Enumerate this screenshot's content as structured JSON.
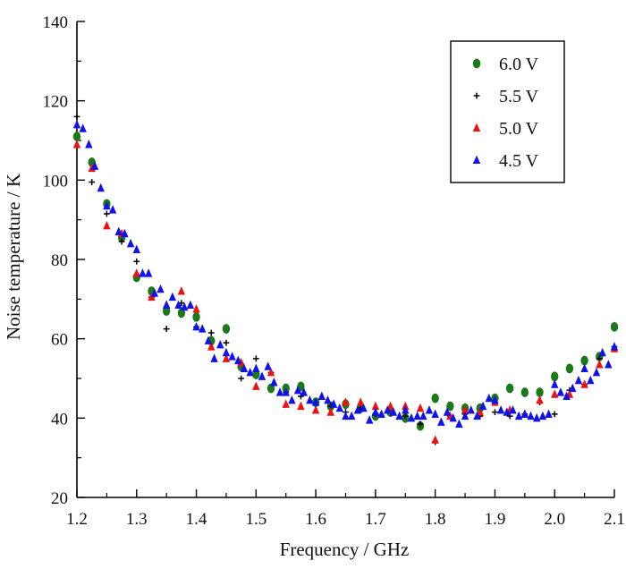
{
  "chart_data": {
    "type": "scatter",
    "title": "",
    "xlabel": "Frequency / GHz",
    "ylabel": "Noise temperature / K",
    "xlim": [
      1.2,
      2.1
    ],
    "ylim": [
      20,
      140
    ],
    "xticks": [
      1.2,
      1.3,
      1.4,
      1.5,
      1.6,
      1.7,
      1.8,
      1.9,
      2.0,
      2.1
    ],
    "xtick_labels": [
      "1.2",
      "1.3",
      "1.4",
      "1.5",
      "1.6",
      "1.7",
      "1.8",
      "1.9",
      "2.0",
      "2.1"
    ],
    "yticks": [
      20,
      40,
      60,
      80,
      100,
      120,
      140
    ],
    "ytick_labels": [
      "20",
      "40",
      "60",
      "80",
      "100",
      "120",
      "140"
    ],
    "grid": false,
    "legend_position": "top-right",
    "series": [
      {
        "name": "6.0 V",
        "marker": "circle",
        "color": "#1a7a1a",
        "x": [
          1.2,
          1.225,
          1.25,
          1.275,
          1.3,
          1.325,
          1.35,
          1.375,
          1.4,
          1.425,
          1.45,
          1.475,
          1.5,
          1.525,
          1.55,
          1.575,
          1.6,
          1.625,
          1.65,
          1.675,
          1.7,
          1.725,
          1.75,
          1.775,
          1.8,
          1.825,
          1.85,
          1.875,
          1.9,
          1.925,
          1.95,
          1.975,
          2.0,
          2.025,
          2.05,
          2.075,
          2.1
        ],
        "y": [
          111,
          104.5,
          94,
          85.5,
          75.5,
          72,
          67,
          66.5,
          65.5,
          59.5,
          62.5,
          53,
          51,
          47.5,
          47.5,
          48,
          44,
          43,
          43.5,
          42.5,
          40.5,
          41.5,
          40,
          38,
          45,
          43,
          42.5,
          42.5,
          45,
          47.5,
          46.5,
          46.5,
          50.5,
          52.5,
          54.5,
          55.5,
          63
        ]
      },
      {
        "name": "5.5 V",
        "marker": "plus",
        "color": "#000000",
        "x": [
          1.2,
          1.225,
          1.25,
          1.275,
          1.3,
          1.325,
          1.35,
          1.375,
          1.4,
          1.425,
          1.45,
          1.475,
          1.5,
          1.525,
          1.55,
          1.575,
          1.6,
          1.625,
          1.65,
          1.675,
          1.7,
          1.725,
          1.75,
          1.775,
          1.8,
          1.825,
          1.85,
          1.875,
          1.9,
          1.925,
          1.95,
          1.975,
          2.0,
          2.025,
          2.05,
          2.075,
          2.1
        ],
        "y": [
          116,
          99.5,
          91.5,
          84.5,
          79.5,
          70.5,
          62.5,
          69,
          63,
          61.5,
          59,
          50,
          55,
          51.5,
          46.5,
          45.5,
          43.5,
          43,
          41.5,
          42.5,
          41,
          42.5,
          40.5,
          38.5,
          34,
          40.5,
          41,
          40.5,
          41.5,
          40.5,
          41,
          44,
          41,
          47,
          48.5,
          55,
          58
        ]
      },
      {
        "name": "5.0 V",
        "marker": "triangle",
        "color": "#ee1111",
        "x": [
          1.2,
          1.225,
          1.25,
          1.275,
          1.3,
          1.325,
          1.35,
          1.375,
          1.4,
          1.425,
          1.45,
          1.475,
          1.5,
          1.525,
          1.55,
          1.575,
          1.6,
          1.625,
          1.65,
          1.675,
          1.7,
          1.725,
          1.75,
          1.775,
          1.8,
          1.825,
          1.85,
          1.875,
          1.9,
          1.925,
          1.95,
          1.975,
          2.0,
          2.025,
          2.05,
          2.075,
          2.1
        ],
        "y": [
          109,
          103,
          88.5,
          86.5,
          76.5,
          70.5,
          68.5,
          72,
          67.5,
          58,
          55,
          54,
          48,
          51.5,
          43.5,
          43,
          42,
          41.5,
          44,
          44,
          43,
          43,
          43,
          42.5,
          34.5,
          40.5,
          42,
          41.5,
          44,
          42,
          41,
          44.5,
          46,
          46,
          48.5,
          53.5,
          57.5
        ]
      },
      {
        "name": "4.5 V",
        "marker": "triangle",
        "color": "#1111ee",
        "x": [
          1.2,
          1.21,
          1.22,
          1.23,
          1.24,
          1.25,
          1.26,
          1.27,
          1.28,
          1.29,
          1.3,
          1.31,
          1.32,
          1.33,
          1.34,
          1.35,
          1.36,
          1.37,
          1.38,
          1.39,
          1.4,
          1.41,
          1.42,
          1.43,
          1.44,
          1.45,
          1.46,
          1.47,
          1.48,
          1.49,
          1.5,
          1.51,
          1.52,
          1.53,
          1.54,
          1.55,
          1.56,
          1.57,
          1.58,
          1.59,
          1.6,
          1.61,
          1.62,
          1.63,
          1.64,
          1.65,
          1.66,
          1.67,
          1.68,
          1.69,
          1.7,
          1.71,
          1.72,
          1.73,
          1.74,
          1.75,
          1.76,
          1.77,
          1.78,
          1.79,
          1.8,
          1.81,
          1.82,
          1.83,
          1.84,
          1.85,
          1.86,
          1.87,
          1.88,
          1.89,
          1.9,
          1.91,
          1.92,
          1.93,
          1.94,
          1.95,
          1.96,
          1.97,
          1.98,
          1.99,
          2.0,
          2.01,
          2.02,
          2.03,
          2.04,
          2.05,
          2.06,
          2.07,
          2.08,
          2.09,
          2.1
        ],
        "y": [
          114,
          113,
          109,
          103.5,
          98,
          93.5,
          92.5,
          87,
          86.5,
          84,
          82.5,
          76.5,
          76.5,
          71.5,
          72.5,
          68.5,
          70.5,
          68.5,
          68,
          68.5,
          63,
          62.5,
          59.5,
          55,
          58.5,
          56.5,
          55.5,
          54.5,
          52.5,
          51.5,
          52.5,
          50.5,
          53,
          49,
          46.5,
          46.5,
          44.5,
          47,
          46.5,
          44.5,
          44,
          45.5,
          44.5,
          43.5,
          42.5,
          40.5,
          40.5,
          42,
          42.5,
          39.5,
          41.5,
          41,
          42,
          41.5,
          40.5,
          42,
          40,
          40.5,
          40.5,
          42,
          41,
          39,
          41.5,
          40,
          38.5,
          40.5,
          42,
          40.5,
          43,
          45,
          44.5,
          42,
          41.5,
          42,
          40.5,
          41,
          40.5,
          40,
          40.5,
          41,
          48.5,
          46.5,
          45.5,
          47.5,
          49.5,
          52.5,
          49.5,
          51.5,
          56.5,
          53.5,
          58
        ]
      }
    ]
  }
}
